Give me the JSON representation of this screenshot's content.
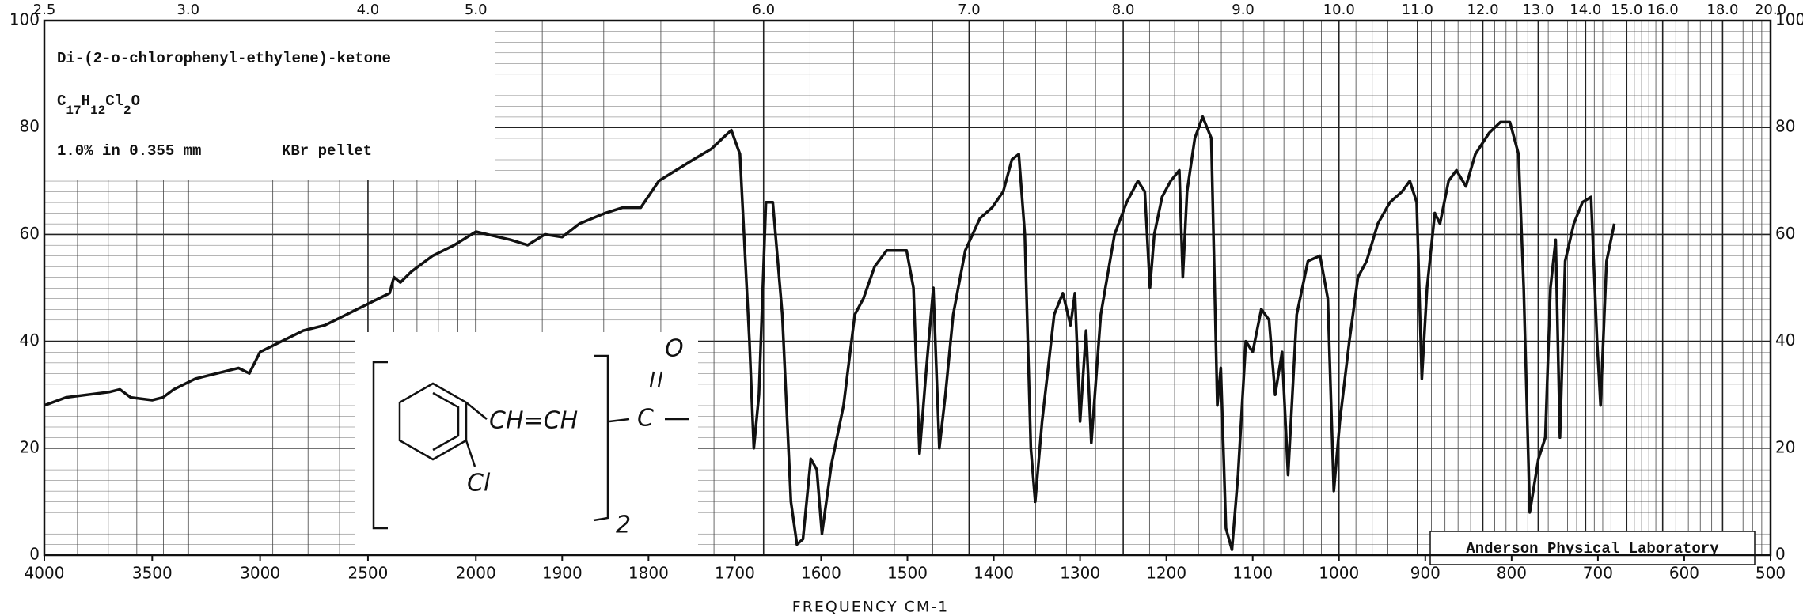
{
  "chart_data": {
    "type": "line",
    "x_label": "FREQUENCY  CM-1",
    "annotations": {
      "compound": "Di-(2-o-chlorophenyl-ethylene)-ketone",
      "formula": [
        "C",
        "17",
        "H",
        "12",
        "Cl",
        "2",
        "O"
      ],
      "sample": "1.0% in 0.355 mm",
      "matrix": "KBr pellet",
      "lab": "Anderson Physical Laboratory",
      "structure": [
        "CH=CH",
        "C",
        "O",
        "Cl",
        "2"
      ]
    },
    "x": [
      4000,
      3900,
      3800,
      3700,
      3650,
      3600,
      3500,
      3450,
      3400,
      3300,
      3200,
      3100,
      3050,
      3000,
      2900,
      2800,
      2700,
      2600,
      2500,
      2450,
      2400,
      2380,
      2350,
      2300,
      2200,
      2100,
      2000,
      1960,
      1940,
      1920,
      1900,
      1880,
      1850,
      1830,
      1809,
      1788,
      1748,
      1727,
      1714,
      1704,
      1694,
      1683,
      1678,
      1672,
      1664,
      1656,
      1645,
      1635,
      1628,
      1621,
      1612,
      1605,
      1599,
      1588,
      1574,
      1561,
      1551,
      1538,
      1524,
      1501,
      1493,
      1486,
      1478,
      1470,
      1463,
      1456,
      1447,
      1433,
      1416,
      1402,
      1389,
      1379,
      1371,
      1364,
      1357,
      1352,
      1344,
      1330,
      1320,
      1311,
      1306,
      1300,
      1293,
      1287,
      1276,
      1260,
      1246,
      1233,
      1225,
      1219,
      1214,
      1205,
      1195,
      1185,
      1181,
      1176,
      1167,
      1158,
      1148,
      1141,
      1137,
      1131,
      1124,
      1117,
      1108,
      1100,
      1090,
      1081,
      1074,
      1066,
      1059,
      1049,
      1036,
      1022,
      1013,
      1006,
      999,
      988,
      978,
      968,
      955,
      941,
      927,
      918,
      910,
      904,
      898,
      889,
      883,
      873,
      864,
      853,
      842,
      826,
      813,
      802,
      792,
      786,
      779,
      769,
      761,
      755,
      749,
      744,
      738,
      728,
      718,
      708,
      701,
      697,
      690,
      681
    ],
    "series": [
      {
        "color": "#111111",
        "values": [
          28,
          29.5,
          30,
          30.5,
          31,
          29.5,
          29,
          29.5,
          31,
          33,
          34,
          35,
          34,
          38,
          40,
          42,
          43,
          45,
          47,
          48,
          49,
          52,
          51,
          53,
          56,
          58,
          60.5,
          59,
          58,
          60,
          59.5,
          62,
          64,
          65,
          65,
          70,
          74,
          76,
          78,
          79.5,
          75,
          40,
          20,
          30,
          66,
          66,
          45,
          10,
          2,
          3,
          18,
          16,
          4,
          17,
          28,
          45,
          48,
          54,
          57,
          57,
          50,
          19,
          35,
          50,
          20,
          30,
          45,
          57,
          63,
          65,
          68,
          74,
          75,
          60,
          20,
          10,
          25,
          45,
          49,
          43,
          49,
          25,
          42,
          21,
          45,
          60,
          66,
          70,
          68,
          50,
          60,
          67,
          70,
          72,
          52,
          68,
          78,
          82,
          78,
          28,
          35,
          5,
          1,
          15,
          40,
          38,
          46,
          44,
          30,
          38,
          15,
          45,
          55,
          56,
          48,
          12,
          25,
          40,
          52,
          55,
          62,
          66,
          68,
          70,
          66,
          33,
          50,
          64,
          62,
          70,
          72,
          69,
          75,
          79,
          81,
          81,
          75,
          50,
          8,
          18,
          22,
          50,
          59,
          22,
          55,
          62,
          66,
          67,
          40,
          28,
          55,
          62
        ]
      }
    ],
    "xlim": [
      4000,
      500
    ],
    "x_scale_break": 2000,
    "xticks": [
      4000,
      3500,
      3000,
      2500,
      2000,
      1900,
      1800,
      1700,
      1600,
      1500,
      1400,
      1300,
      1200,
      1100,
      1000,
      900,
      800,
      700,
      600,
      500
    ],
    "x2ticks": [
      2.5,
      {
        "value": 3,
        "label": "3.0"
      },
      {
        "value": 4,
        "label": "4.0"
      },
      {
        "value": 5,
        "label": "5.0"
      },
      {
        "value": 6,
        "label": "6.0"
      },
      {
        "value": 7,
        "label": "7.0"
      },
      {
        "value": 8,
        "label": "8.0"
      },
      {
        "value": 9,
        "label": "9.0"
      },
      {
        "value": 10,
        "label": "10.0"
      },
      {
        "value": 11,
        "label": "11.0"
      },
      {
        "value": 12,
        "label": "12.0"
      },
      {
        "value": 13,
        "label": "13.0"
      },
      {
        "value": 14,
        "label": "14.0"
      },
      {
        "value": 15,
        "label": "15.0"
      },
      {
        "value": 16,
        "label": "16.0"
      },
      {
        "value": 18,
        "label": "18.0"
      },
      {
        "value": 20,
        "label": "20.0"
      }
    ],
    "ylim": [
      0,
      100
    ],
    "yticks": [
      0,
      20,
      40,
      60,
      80,
      100
    ],
    "grid": true
  }
}
